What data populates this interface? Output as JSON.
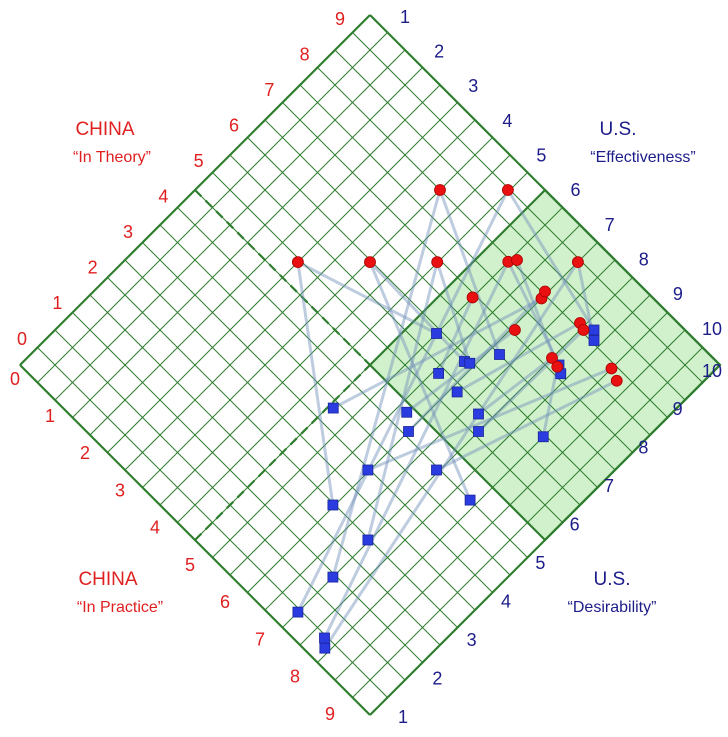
{
  "labels": {
    "china_theory": {
      "title": "China",
      "subtitle": "“In Theory”",
      "color": "#e02020"
    },
    "us_effectiveness": {
      "title": "U.S.",
      "subtitle": "“Effectiveness”",
      "color": "#1c1c8a"
    },
    "china_practice": {
      "title": "China",
      "subtitle": "“In Practice”",
      "color": "#e02020"
    },
    "us_desirability": {
      "title": "U.S.",
      "subtitle": "“Desirability”",
      "color": "#1c1c8a"
    }
  },
  "axes": {
    "upper_left": [
      0,
      1,
      2,
      3,
      4,
      5,
      6,
      7,
      8,
      9
    ],
    "upper_right": [
      1,
      2,
      3,
      4,
      5,
      6,
      7,
      8,
      9,
      10
    ],
    "lower_left": [
      0,
      1,
      2,
      3,
      4,
      5,
      6,
      7,
      8,
      9
    ],
    "lower_right": [
      10,
      9,
      8,
      7,
      6,
      5,
      4,
      3,
      2,
      1
    ]
  },
  "points": {
    "red": {
      "color": "#e81010",
      "b": [
        5.44,
        6.47,
        7.43,
        8.5,
        9.47,
        9.44,
        8.45,
        8.6,
        7.43,
        8.4,
        8.55,
        7.57,
        8.6,
        8.55,
        7.7,
        7.65,
        8.4,
        8.3
      ],
      "d": [
        2.5,
        3.53,
        4.49,
        3.5,
        4.47,
        6.5,
        5.5,
        5.6,
        5.5,
        6.5,
        6.45,
        6.57,
        7.4,
        7.55,
        7.5,
        7.7,
        8.5,
        8.75
      ]
    },
    "blue": {
      "color": "#2a3ce0",
      "b": [
        6.4,
        6.4,
        6.45,
        7.0,
        8.7,
        8.55,
        7.7,
        7.6,
        5.86,
        3.86,
        4.6,
        4.85,
        5.86,
        5.6,
        5.85,
        6.45,
        3.47,
        4.45,
        2.47,
        4.5,
        2.47,
        1.44,
        0.44,
        0.31,
        0.45
      ],
      "d": [
        5.5,
        6.3,
        6.4,
        6.7,
        7.7,
        7.85,
        7.7,
        7.85,
        6.1,
        5.09,
        6.5,
        6.2,
        6.63,
        7.5,
        7.25,
        8.5,
        6.47,
        7.45,
        6.47,
        8.36,
        7.47,
        7.5,
        7.5,
        8.4,
        8.25
      ]
    }
  }
}
